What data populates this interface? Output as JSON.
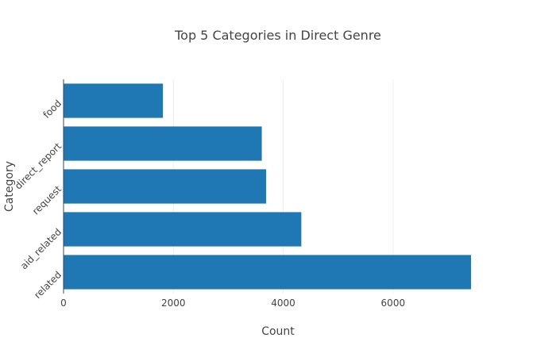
{
  "chart_data": {
    "type": "bar",
    "orientation": "horizontal",
    "title": "Top 5 Categories in Direct Genre",
    "xlabel": "Count",
    "ylabel": "Category",
    "categories": [
      "related",
      "aid_related",
      "request",
      "direct_report",
      "food"
    ],
    "values": [
      7420,
      4330,
      3690,
      3610,
      1810
    ],
    "xlim": [
      0,
      7420
    ],
    "xticks": [
      0,
      2000,
      4000,
      6000
    ],
    "xtick_labels": [
      "0",
      "2000",
      "4000",
      "6000"
    ],
    "grid": "vertical",
    "legend": "none",
    "bar_color": "#1f77b4"
  }
}
